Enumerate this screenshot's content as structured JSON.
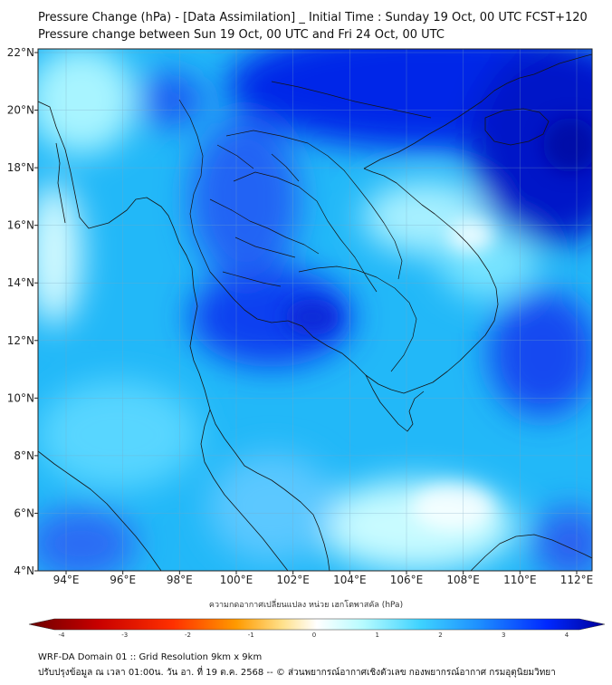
{
  "title_line1": "Pressure Change (hPa) - [Data Assimilation] _ Initial Time : Sunday 19 Oct, 00 UTC FCST+120",
  "title_line2": "Pressure change between Sun 19 Oct, 00 UTC and Fri 24 Oct, 00 UTC",
  "lat_ticks": [
    "22°N",
    "20°N",
    "18°N",
    "16°N",
    "14°N",
    "12°N",
    "10°N",
    "8°N",
    "6°N",
    "4°N"
  ],
  "lon_ticks": [
    "94°E",
    "96°E",
    "98°E",
    "100°E",
    "102°E",
    "104°E",
    "106°E",
    "108°E",
    "110°E",
    "112°E"
  ],
  "colorbar": {
    "title": "ความกดอากาศเปลี่ยนแปลง หน่วย เฮกโตพาสคัล (hPa)",
    "ticks": [
      "-4",
      "-3",
      "-2",
      "-1",
      "0",
      "1",
      "2",
      "3",
      "4"
    ],
    "colors": [
      "#6b0000",
      "#c80000",
      "#ff3000",
      "#ff9a00",
      "#ffe08a",
      "#ffffff",
      "#b6fbff",
      "#3ed2ff",
      "#1e90ff",
      "#0028ff",
      "#00009a"
    ]
  },
  "footer_line1": "WRF-DA Domain 01 :: Grid Resolution 9km x 9km",
  "footer_line2": "ปรับปรุงข้อมูล ณ เวลา 01:00น. วัน อา. ที่ 19 ต.ค. 2568 -- © ส่วนพยากรณ์อากาศเชิงตัวเลข กองพยากรณ์อากาศ กรมอุตุนิยมวิทยา",
  "map_colors": {
    "sea_base": "#22b8f8",
    "strong_fall": "#0022f0",
    "deep": "#0015c8",
    "light": "#c8fbff",
    "coast": "#1a1a1a"
  }
}
